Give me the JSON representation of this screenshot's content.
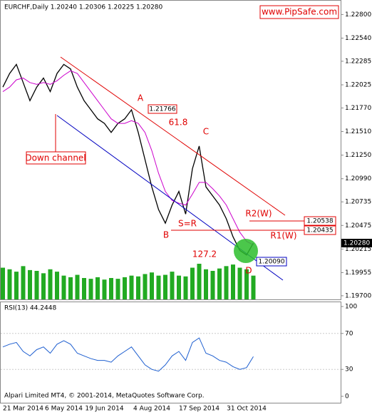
{
  "header": "EURCHF,Daily  1.20240 1.20306 1.20225 1.20280",
  "watermark": "www.PipSafe.com",
  "footer": "Alpari Limited MT4, © 2001-2014, MetaQuotes Software Corp.",
  "annotations": {
    "a": "A",
    "fib": "61.8",
    "c": "C",
    "b": "B",
    "sr": "S=R",
    "ext": "127.2",
    "d": "D",
    "r2": "R2(W)",
    "r1": "R1(W)",
    "channel": "Down channel"
  },
  "price_boxes": {
    "a": "1.21766",
    "r2": "1.20538",
    "r1": "1.20435",
    "low": "1.20090",
    "current": "1.20280"
  },
  "chart_data": [
    {
      "type": "line",
      "categories": [
        null,
        null,
        null,
        "21 Mar 2014",
        null,
        null,
        null,
        null,
        null,
        "6 May 2014",
        null,
        null,
        null,
        null,
        null,
        "19 Jun 2014",
        null,
        null,
        null,
        null,
        null,
        null,
        "4 Aug 2014",
        null,
        null,
        null,
        null,
        null,
        null,
        "17 Sep 2014",
        null,
        null,
        null,
        null,
        null,
        null,
        "31 Oct 2014",
        null
      ],
      "series": [
        {
          "color": "#000000",
          "values": [
            1.22,
            1.2215,
            1.2225,
            1.2205,
            1.2185,
            1.22,
            1.221,
            1.2195,
            1.2215,
            1.2225,
            1.222,
            1.22,
            1.2185,
            1.2175,
            1.2165,
            1.216,
            1.215,
            1.216,
            1.2165,
            1.2175,
            1.215,
            1.212,
            1.209,
            1.2065,
            1.205,
            1.207,
            1.2085,
            1.206,
            1.211,
            1.2135,
            1.209,
            1.208,
            1.207,
            1.2055,
            1.2035,
            1.202,
            1.2015,
            1.2028
          ]
        },
        {
          "color": "#cc00cc",
          "values": [
            1.2195,
            1.22,
            1.2208,
            1.221,
            1.2205,
            1.2203,
            1.2205,
            1.2203,
            1.2207,
            1.2213,
            1.2218,
            1.2215,
            1.2205,
            1.2195,
            1.2185,
            1.2175,
            1.2165,
            1.216,
            1.216,
            1.2163,
            1.216,
            1.215,
            1.213,
            1.2105,
            1.2085,
            1.2075,
            1.2072,
            1.207,
            1.2082,
            1.2095,
            1.2095,
            1.2088,
            1.208,
            1.207,
            1.2055,
            1.204,
            1.203,
            1.2026
          ]
        }
      ],
      "volume": {
        "color": "#22aa22",
        "values": [
          40,
          38,
          35,
          42,
          37,
          36,
          33,
          38,
          35,
          30,
          28,
          31,
          27,
          26,
          28,
          25,
          27,
          26,
          28,
          30,
          29,
          32,
          34,
          30,
          31,
          35,
          30,
          29,
          40,
          45,
          38,
          36,
          39,
          42,
          44,
          40,
          38,
          30
        ]
      },
      "ylim": [
        1.1966,
        1.2296
      ],
      "yticks": [
        {
          "value": 1.228,
          "label": "1.22800"
        },
        {
          "value": 1.2254,
          "label": "1.22540"
        },
        {
          "value": 1.22285,
          "label": "1.22285"
        },
        {
          "value": 1.22025,
          "label": "1.22025"
        },
        {
          "value": 1.2177,
          "label": "1.21770"
        },
        {
          "value": 1.2151,
          "label": "1.21510"
        },
        {
          "value": 1.2125,
          "label": "1.21250"
        },
        {
          "value": 1.2099,
          "label": "1.20990"
        },
        {
          "value": 1.20735,
          "label": "1.20735"
        },
        {
          "value": 1.20475,
          "label": "1.20475"
        },
        {
          "value": 1.20215,
          "label": "1.20215"
        },
        {
          "value": 1.19955,
          "label": "1.19955"
        },
        {
          "value": 1.197,
          "label": "1.19700"
        }
      ]
    },
    {
      "type": "line",
      "title": "RSI(13) 44.2448",
      "color": "#1e5fd0",
      "values": [
        55,
        58,
        60,
        50,
        45,
        52,
        55,
        48,
        58,
        62,
        58,
        48,
        45,
        42,
        40,
        40,
        38,
        45,
        50,
        55,
        45,
        35,
        30,
        28,
        35,
        45,
        50,
        40,
        60,
        65,
        48,
        45,
        40,
        38,
        33,
        30,
        32,
        44.2448
      ],
      "ylim": [
        0,
        100
      ],
      "yticks": [
        0,
        30,
        70,
        100
      ]
    }
  ]
}
